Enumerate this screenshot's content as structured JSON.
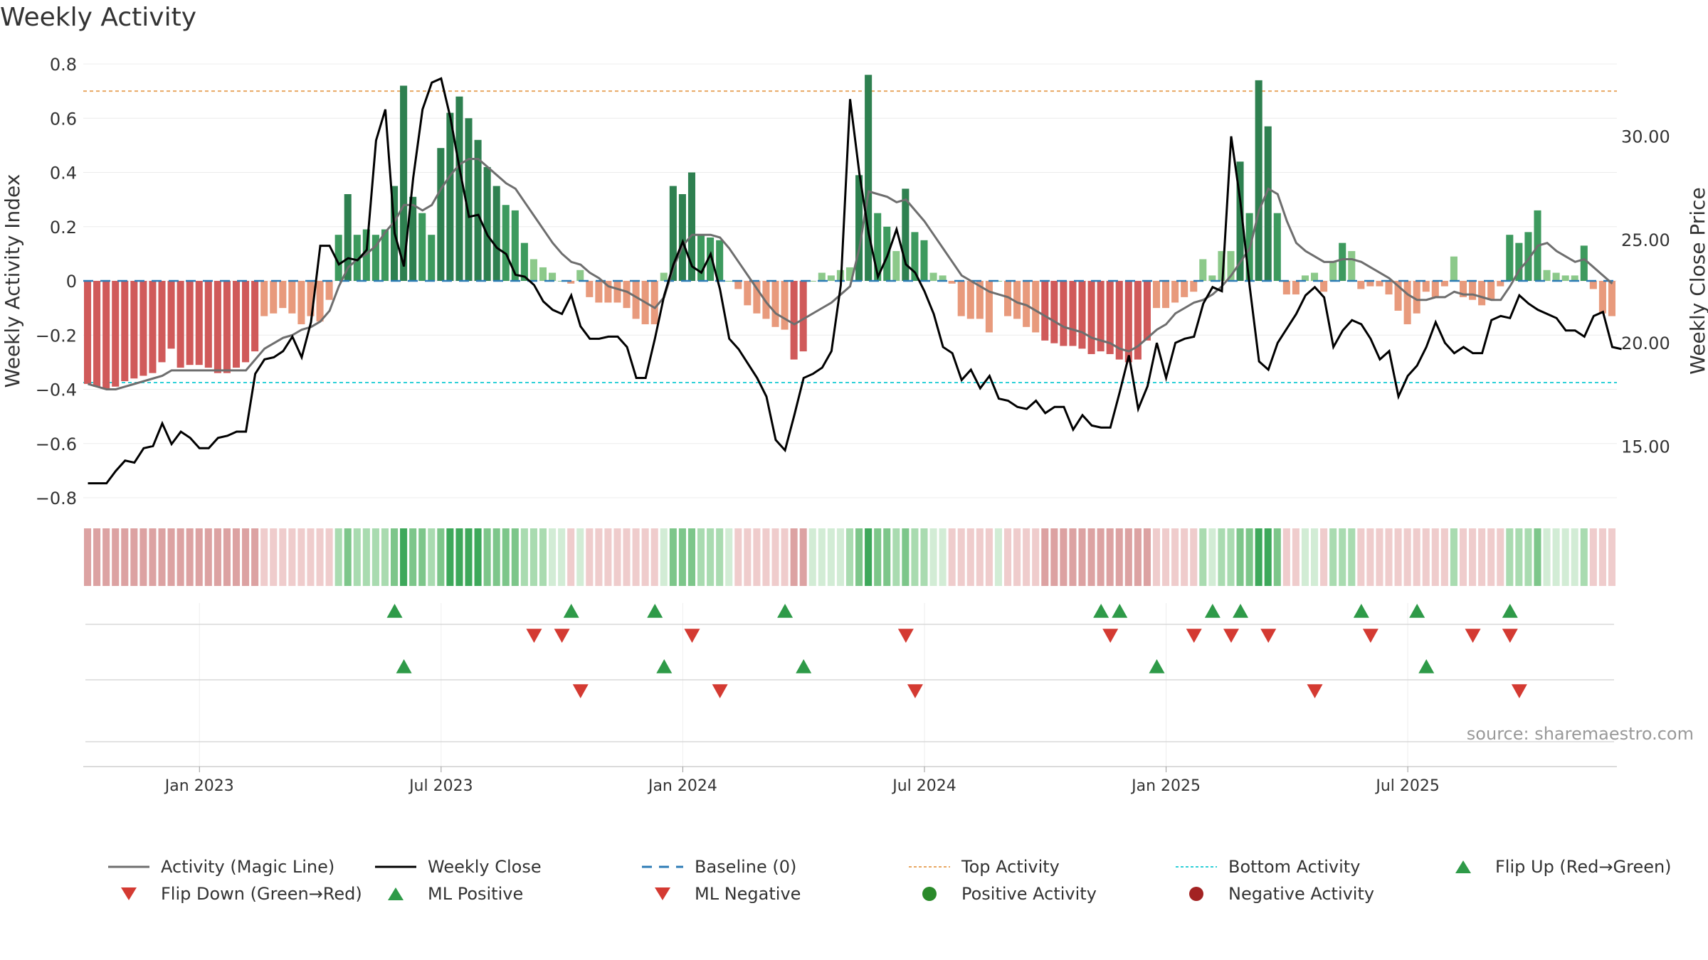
{
  "chart_data": {
    "type": "bar",
    "title": "Weekly Activity",
    "ylabel": "Weekly Activity Index",
    "y2label": "Weekly Close Price",
    "ylim": [
      -0.8,
      0.8
    ],
    "y2lim": [
      12.5,
      33.5
    ],
    "yticks": [
      "0.8",
      "0.6",
      "0.4",
      "0.2",
      "0",
      "−0.2",
      "−0.4",
      "−0.6",
      "−0.8"
    ],
    "y2ticks": [
      "30.00",
      "25.00",
      "20.00",
      "15.00"
    ],
    "xticks": [
      "Jan 2023",
      "Jul 2023",
      "Jan 2024",
      "Jul 2024",
      "Jan 2025",
      "Jul 2025"
    ],
    "top_activity": 0.7,
    "bottom_activity": -0.375,
    "source": "source: sharemaestro.com",
    "activity": [
      -0.38,
      -0.39,
      -0.4,
      -0.39,
      -0.37,
      -0.36,
      -0.35,
      -0.34,
      -0.3,
      -0.25,
      -0.32,
      -0.31,
      -0.31,
      -0.32,
      -0.34,
      -0.34,
      -0.32,
      -0.3,
      -0.26,
      -0.13,
      -0.12,
      -0.1,
      -0.12,
      -0.16,
      -0.13,
      -0.15,
      -0.07,
      0.17,
      0.32,
      0.17,
      0.19,
      0.17,
      0.19,
      0.35,
      0.72,
      0.31,
      0.25,
      0.17,
      0.49,
      0.62,
      0.68,
      0.6,
      0.52,
      0.42,
      0.35,
      0.28,
      0.26,
      0.14,
      0.08,
      0.05,
      0.03,
      0.0,
      -0.01,
      0.04,
      -0.06,
      -0.08,
      -0.08,
      -0.08,
      -0.1,
      -0.14,
      -0.16,
      -0.16,
      0.03,
      0.35,
      0.32,
      0.4,
      0.17,
      0.16,
      0.15,
      0.0,
      -0.03,
      -0.09,
      -0.12,
      -0.14,
      -0.17,
      -0.18,
      -0.29,
      -0.26,
      0.0,
      0.03,
      0.02,
      0.04,
      0.05,
      0.39,
      0.76,
      0.25,
      0.2,
      0.11,
      0.34,
      0.18,
      0.15,
      0.03,
      0.02,
      -0.01,
      -0.13,
      -0.14,
      -0.14,
      -0.19,
      0.0,
      -0.13,
      -0.14,
      -0.17,
      -0.19,
      -0.22,
      -0.23,
      -0.24,
      -0.24,
      -0.25,
      -0.27,
      -0.26,
      -0.27,
      -0.29,
      -0.3,
      -0.29,
      -0.22,
      -0.1,
      -0.1,
      -0.08,
      -0.06,
      -0.04,
      0.08,
      0.02,
      0.11,
      0.11,
      0.44,
      0.25,
      0.74,
      0.57,
      0.25,
      -0.05,
      -0.05,
      0.02,
      0.03,
      -0.04,
      0.07,
      0.14,
      0.11,
      -0.03,
      -0.02,
      -0.02,
      -0.05,
      -0.11,
      -0.16,
      -0.12,
      -0.04,
      -0.06,
      -0.02,
      0.09,
      -0.06,
      -0.07,
      -0.09,
      -0.07,
      -0.02,
      0.17,
      0.14,
      0.18,
      0.26,
      0.04,
      0.03,
      0.02,
      0.02,
      0.13,
      -0.03,
      -0.12,
      -0.13
    ],
    "magic_line": [
      -0.38,
      -0.39,
      -0.4,
      -0.4,
      -0.39,
      -0.38,
      -0.37,
      -0.36,
      -0.35,
      -0.33,
      -0.33,
      -0.33,
      -0.33,
      -0.33,
      -0.33,
      -0.33,
      -0.33,
      -0.33,
      -0.29,
      -0.25,
      -0.23,
      -0.21,
      -0.2,
      -0.18,
      -0.17,
      -0.15,
      -0.11,
      -0.02,
      0.05,
      0.08,
      0.1,
      0.13,
      0.18,
      0.22,
      0.28,
      0.28,
      0.26,
      0.28,
      0.34,
      0.39,
      0.43,
      0.45,
      0.45,
      0.42,
      0.39,
      0.36,
      0.34,
      0.29,
      0.24,
      0.19,
      0.14,
      0.1,
      0.07,
      0.06,
      0.03,
      0.01,
      -0.02,
      -0.03,
      -0.04,
      -0.06,
      -0.08,
      -0.1,
      -0.06,
      0.05,
      0.13,
      0.17,
      0.17,
      0.17,
      0.16,
      0.12,
      0.07,
      0.02,
      -0.03,
      -0.08,
      -0.12,
      -0.14,
      -0.16,
      -0.14,
      -0.12,
      -0.1,
      -0.08,
      -0.05,
      -0.02,
      0.12,
      0.33,
      0.32,
      0.31,
      0.29,
      0.3,
      0.26,
      0.22,
      0.17,
      0.12,
      0.07,
      0.02,
      0.0,
      -0.02,
      -0.04,
      -0.05,
      -0.06,
      -0.08,
      -0.09,
      -0.11,
      -0.13,
      -0.15,
      -0.17,
      -0.18,
      -0.19,
      -0.21,
      -0.22,
      -0.23,
      -0.25,
      -0.26,
      -0.24,
      -0.21,
      -0.18,
      -0.16,
      -0.12,
      -0.1,
      -0.08,
      -0.07,
      -0.05,
      -0.02,
      0.02,
      0.07,
      0.12,
      0.26,
      0.34,
      0.32,
      0.22,
      0.14,
      0.11,
      0.09,
      0.07,
      0.07,
      0.08,
      0.08,
      0.07,
      0.05,
      0.03,
      0.01,
      -0.02,
      -0.05,
      -0.07,
      -0.07,
      -0.06,
      -0.06,
      -0.04,
      -0.05,
      -0.05,
      -0.06,
      -0.07,
      -0.07,
      -0.02,
      0.04,
      0.08,
      0.13,
      0.14,
      0.11,
      0.09,
      0.07,
      0.08,
      0.05,
      0.02,
      -0.01
    ],
    "weekly_close": [
      13.2,
      13.2,
      13.2,
      13.8,
      14.3,
      14.2,
      14.9,
      15.0,
      16.1,
      15.1,
      15.7,
      15.4,
      14.9,
      14.9,
      15.4,
      15.5,
      15.7,
      15.7,
      18.5,
      19.2,
      19.3,
      19.6,
      20.3,
      19.3,
      21.0,
      24.7,
      24.7,
      23.8,
      24.1,
      24.0,
      24.5,
      29.8,
      31.3,
      25.3,
      23.7,
      28.0,
      31.3,
      32.6,
      32.8,
      30.9,
      28.4,
      26.1,
      26.2,
      25.2,
      24.6,
      24.3,
      23.3,
      23.2,
      22.8,
      22.0,
      21.6,
      21.4,
      22.3,
      20.8,
      20.2,
      20.2,
      20.3,
      20.3,
      19.8,
      18.3,
      18.3,
      20.2,
      22.3,
      23.8,
      24.9,
      23.7,
      23.4,
      24.3,
      22.6,
      20.2,
      19.7,
      19.0,
      18.3,
      17.4,
      15.3,
      14.8,
      16.5,
      18.3,
      18.5,
      18.8,
      19.6,
      22.8,
      31.8,
      28.2,
      25.3,
      23.2,
      24.2,
      25.5,
      23.8,
      23.4,
      22.5,
      21.4,
      19.8,
      19.5,
      18.2,
      18.7,
      17.8,
      18.4,
      17.3,
      17.2,
      16.9,
      16.8,
      17.2,
      16.6,
      16.9,
      16.9,
      15.8,
      16.5,
      16.0,
      15.9,
      15.9,
      17.6,
      19.4,
      16.8,
      17.9,
      20.0,
      18.3,
      20.0,
      20.2,
      20.3,
      21.9,
      22.7,
      22.5,
      30.0,
      26.8,
      22.7,
      19.1,
      18.7,
      20.0,
      20.7,
      21.4,
      22.3,
      22.7,
      22.2,
      19.8,
      20.6,
      21.1,
      20.9,
      20.2,
      19.2,
      19.6,
      17.4,
      18.4,
      18.9,
      19.8,
      21.0,
      20.0,
      19.5,
      19.8,
      19.5,
      19.5,
      21.1,
      21.3,
      21.2,
      22.3,
      21.9,
      21.6,
      21.4,
      21.2,
      20.6,
      20.6,
      20.3,
      21.3,
      21.5,
      19.8,
      19.7
    ],
    "flip_up": [
      33,
      52,
      61,
      75,
      109,
      111,
      121,
      124,
      137,
      143,
      153
    ],
    "flip_down": [
      48,
      51,
      65,
      88,
      110,
      119,
      123,
      127,
      138,
      149,
      153
    ],
    "ml_positive": [
      34,
      62,
      77,
      115,
      144
    ],
    "ml_negative": [
      53,
      68,
      89,
      132,
      154
    ],
    "legend": [
      {
        "label": "Activity (Magic Line)",
        "marker": "line",
        "color": "#6e6e6e"
      },
      {
        "label": "Weekly Close",
        "marker": "line",
        "color": "#000000"
      },
      {
        "label": "Baseline (0)",
        "marker": "dash",
        "color": "#2c7bb6"
      },
      {
        "label": "Top Activity",
        "marker": "dot-line",
        "color": "#e8a863"
      },
      {
        "label": "Bottom Activity",
        "marker": "dot-line",
        "color": "#2fd0d8"
      },
      {
        "label": "Flip Up (Red→Green)",
        "marker": "triangle-up",
        "color": "#2e9a48"
      },
      {
        "label": "Flip Down (Green→Red)",
        "marker": "triangle-down",
        "color": "#d43a32"
      },
      {
        "label": "ML Positive",
        "marker": "triangle-up",
        "color": "#2e9a48"
      },
      {
        "label": "ML Negative",
        "marker": "triangle-down",
        "color": "#d43a32"
      },
      {
        "label": "Positive Activity",
        "marker": "circle",
        "color": "#2a8a2a"
      },
      {
        "label": "Negative Activity",
        "marker": "circle",
        "color": "#a32222"
      }
    ]
  }
}
